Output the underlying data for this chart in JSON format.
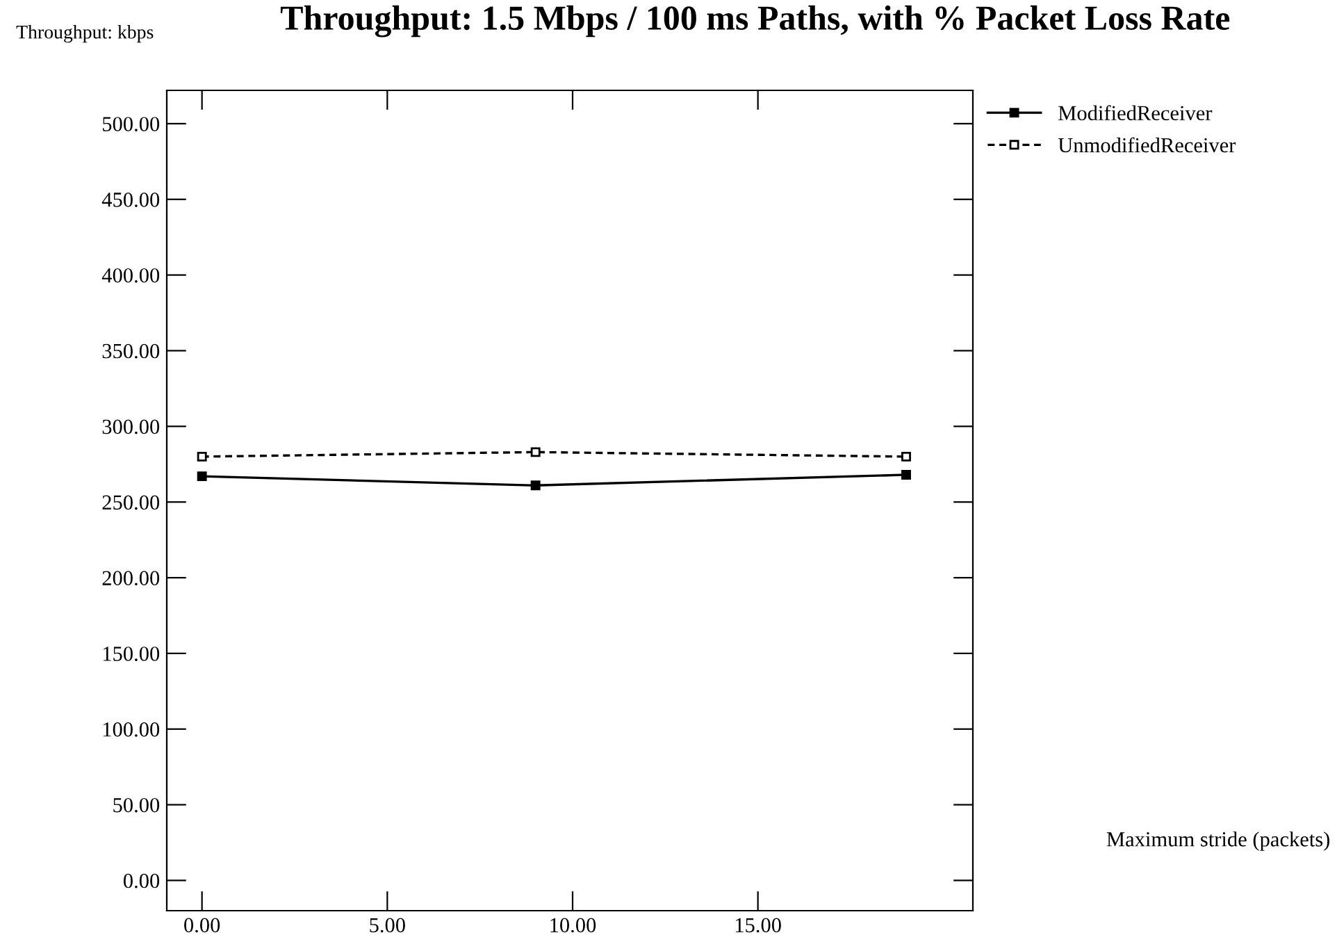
{
  "chart_data": {
    "type": "line",
    "title": "Throughput: 1.5 Mbps / 100 ms Paths, with % Packet Loss Rate",
    "ylabel": "Throughput: kbps",
    "annotations": [
      "Maximum stride (packets)"
    ],
    "x": [
      0,
      9,
      19
    ],
    "series": [
      {
        "name": "ModifiedReceiver",
        "color": "#000000",
        "values": [
          267,
          261,
          268
        ],
        "line_style": "solid",
        "marker": "square"
      },
      {
        "name": "UnmodifiedReceiver",
        "color": "#000000",
        "values": [
          280,
          283,
          280
        ],
        "line_style": "dashed",
        "marker": "square"
      }
    ],
    "xlim": [
      -0.95,
      20.8
    ],
    "ylim": [
      -20,
      522
    ],
    "xticks": [
      {
        "value": 0,
        "label": "0.00"
      },
      {
        "value": 5,
        "label": "5.00"
      },
      {
        "value": 10,
        "label": "10.00"
      },
      {
        "value": 15,
        "label": "15.00"
      }
    ],
    "yticks": [
      {
        "value": 0,
        "label": "0.00"
      },
      {
        "value": 50,
        "label": "50.00"
      },
      {
        "value": 100,
        "label": "100.00"
      },
      {
        "value": 150,
        "label": "150.00"
      },
      {
        "value": 200,
        "label": "200.00"
      },
      {
        "value": 250,
        "label": "250.00"
      },
      {
        "value": 300,
        "label": "300.00"
      },
      {
        "value": 350,
        "label": "350.00"
      },
      {
        "value": 400,
        "label": "400.00"
      },
      {
        "value": 450,
        "label": "450.00"
      },
      {
        "value": 500,
        "label": "500.00"
      }
    ],
    "grid": false,
    "legend": "top right"
  }
}
